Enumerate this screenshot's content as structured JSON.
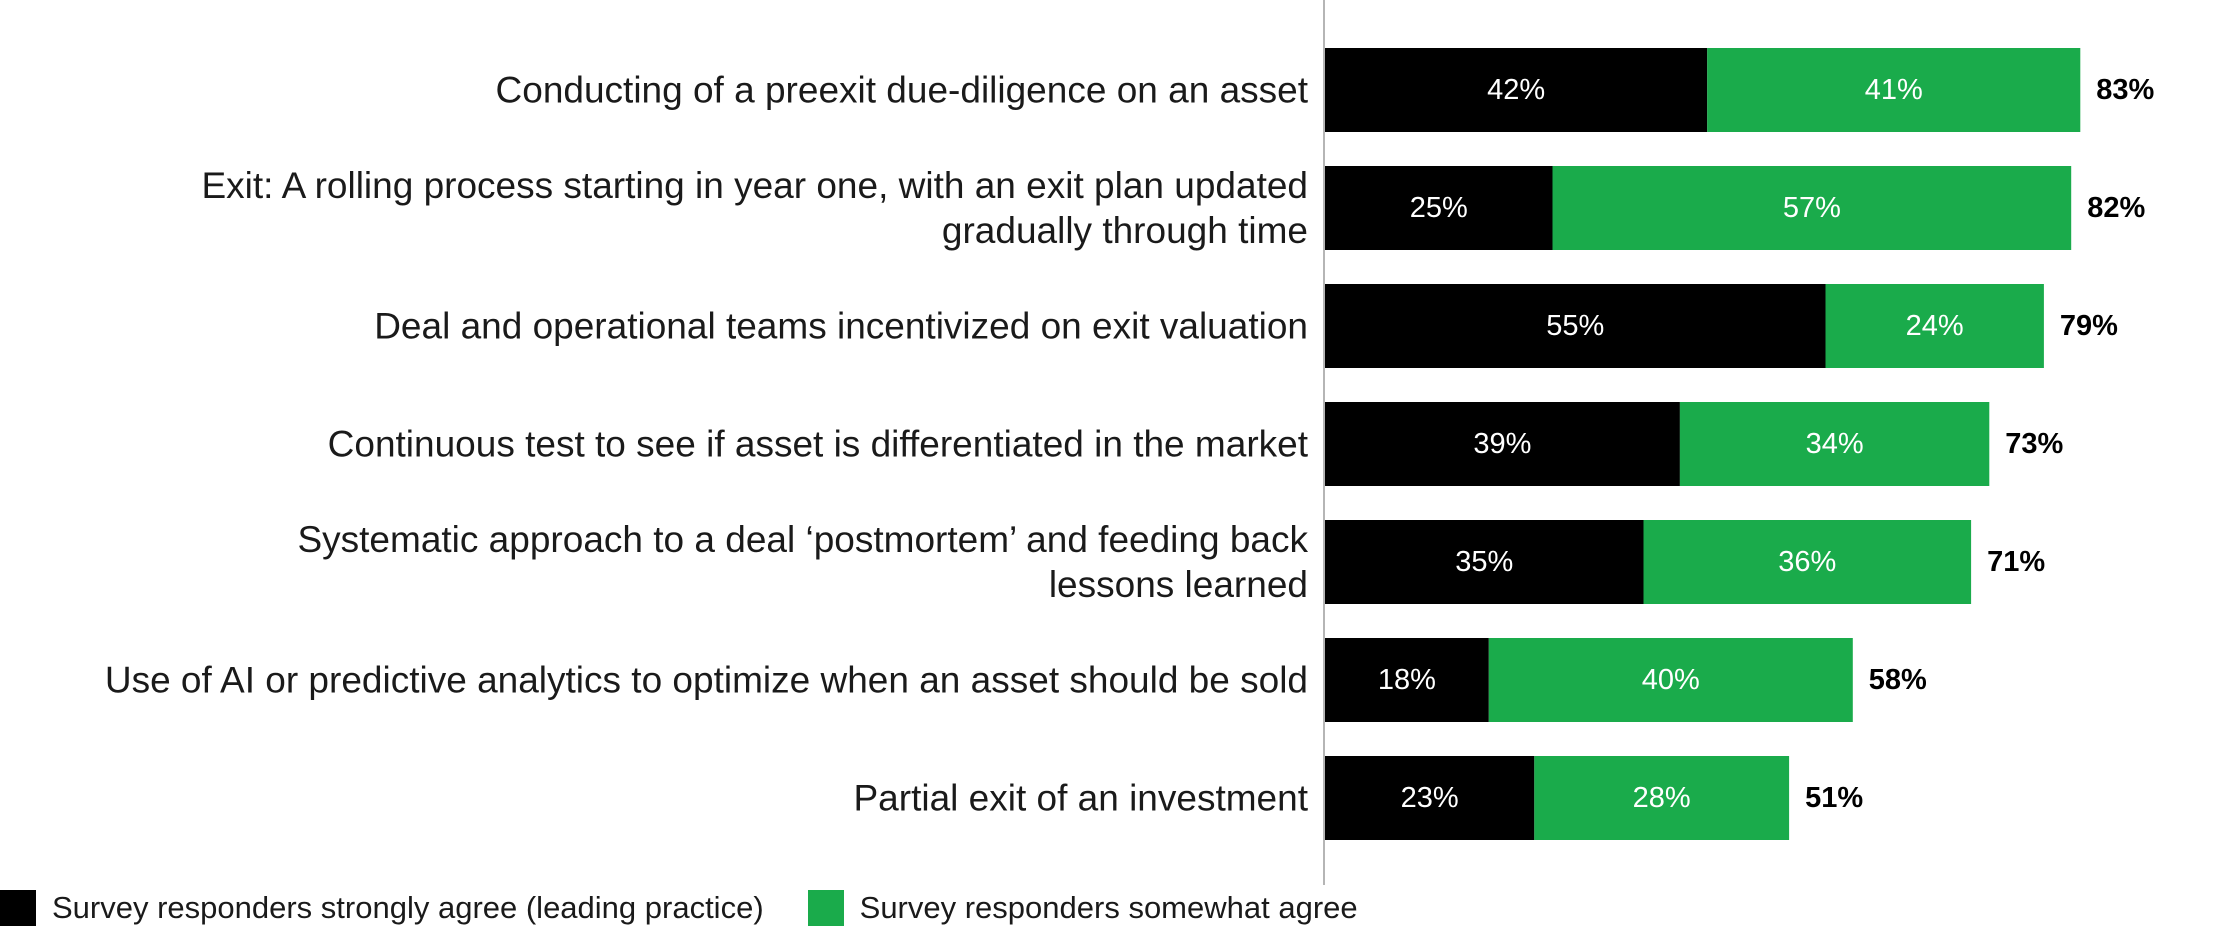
{
  "colors": {
    "strongly": "#000000",
    "somewhat": "#1aab4b",
    "axis": "#b5b5b5"
  },
  "legend": {
    "strongly_label": "Survey responders strongly agree (leading practice)",
    "somewhat_label": "Survey responders somewhat agree"
  },
  "chart_data": {
    "type": "bar",
    "orientation": "horizontal",
    "stacked": true,
    "categories": [
      [
        "Conducting of a preexit due-diligence on an asset"
      ],
      [
        "Exit: A rolling process starting in year one, with an exit plan updated",
        "gradually through time"
      ],
      [
        "Deal and operational teams incentivized on exit valuation"
      ],
      [
        "Continuous test to see if asset is differentiated in the market"
      ],
      [
        "Systematic approach to a deal ‘postmortem’ and feeding back",
        "lessons learned"
      ],
      [
        "Use of AI or predictive analytics to optimize when an asset should be sold"
      ],
      [
        "Partial exit of an investment"
      ]
    ],
    "series": [
      {
        "name": "Survey responders strongly agree (leading practice)",
        "values": [
          42,
          25,
          55,
          39,
          35,
          18,
          23
        ],
        "labels": [
          "42%",
          "25%",
          "55%",
          "39%",
          "35%",
          "18%",
          "23%"
        ]
      },
      {
        "name": "Survey responders somewhat agree",
        "values": [
          41,
          57,
          24,
          34,
          36,
          40,
          28
        ],
        "labels": [
          "41%",
          "57%",
          "24%",
          "34%",
          "36%",
          "40%",
          "28%"
        ]
      }
    ],
    "totals": [
      "83%",
      "82%",
      "79%",
      "73%",
      "71%",
      "58%",
      "51%"
    ],
    "xlim": [
      0,
      100
    ],
    "legend_position": "bottom-left",
    "grid": false
  }
}
